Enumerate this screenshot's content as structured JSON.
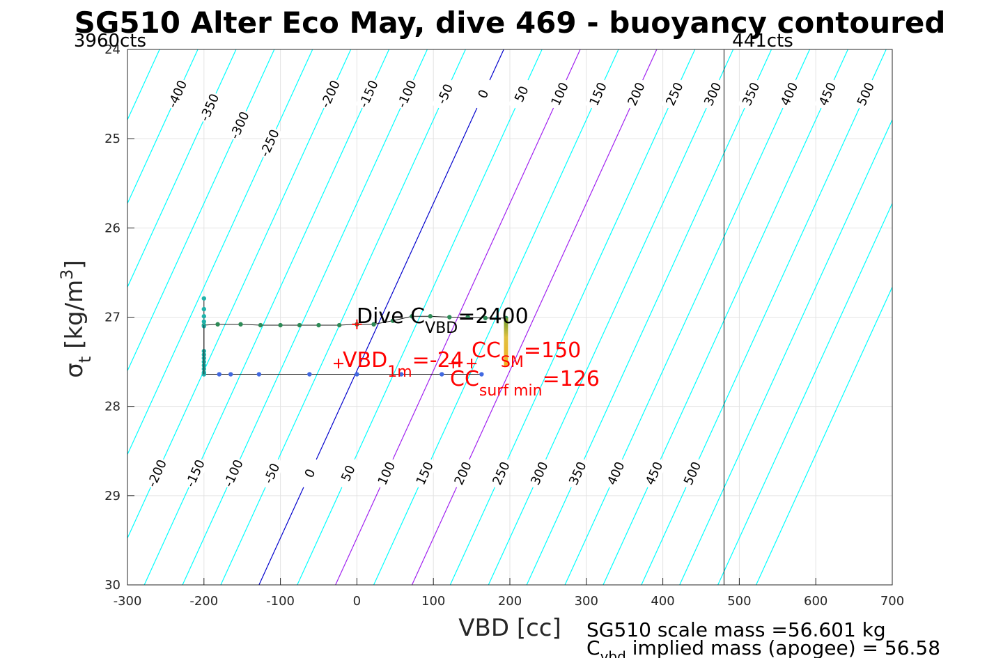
{
  "chart_data": {
    "type": "scatter",
    "title": "SG510 Alter Eco May, dive 469 - buoyancy contoured",
    "xlabel": "VBD [cc]",
    "ylabel": "σ_t [kg/m^3]",
    "xlim": [
      -300,
      700
    ],
    "ylim": [
      24,
      30
    ],
    "y_reversed": true,
    "grid": true,
    "xticks": [
      "-300",
      "-200",
      "-100",
      "0",
      "100",
      "200",
      "300",
      "400",
      "500",
      "600",
      "700"
    ],
    "yticks": [
      "24",
      "25",
      "26",
      "27",
      "28",
      "29",
      "30"
    ],
    "counts_left": "3960cts",
    "counts_right": "441cts",
    "vline_x": 480,
    "contour_levels": [
      -450,
      -400,
      -350,
      -300,
      -250,
      -200,
      -150,
      -100,
      -50,
      0,
      50,
      100,
      150,
      200,
      250,
      300,
      350,
      400,
      450,
      500,
      550,
      600,
      650
    ],
    "contour_slope_sigma_per_cc": -0.01875,
    "contour_ref_sigma": 27.6,
    "contour_colors": {
      "default": "#00ffff",
      "zero": "#0000cd",
      "highlight": "#a020f0"
    },
    "highlight_levels": [
      100,
      200
    ],
    "contour_labels_top": [
      "-400",
      "-350",
      "-300",
      "-250",
      "-200",
      "-150",
      "-100",
      "-50",
      "0",
      "50",
      "100",
      "150",
      "200",
      "250",
      "300",
      "350",
      "400",
      "450",
      "500"
    ],
    "contour_labels_bottom": [
      "-200",
      "-150",
      "-100",
      "-50",
      "0",
      "50",
      "100",
      "150",
      "200",
      "250",
      "300",
      "350",
      "400",
      "450",
      "500"
    ],
    "series": [
      {
        "color": "#2e8b57",
        "x": [
          -200,
          -182,
          -152,
          -126,
          -100,
          -75,
          -50,
          -23,
          0,
          22,
          47,
          72,
          96,
          121,
          145,
          168,
          195
        ],
        "y": [
          27.09,
          27.08,
          27.08,
          27.09,
          27.09,
          27.09,
          27.09,
          27.09,
          27.08,
          27.08,
          27.04,
          26.99,
          26.99,
          27.0,
          27.0,
          27.01,
          27.01
        ]
      },
      {
        "color": "#4169e1",
        "x": [
          -200,
          -180,
          -165,
          -128,
          -62,
          0,
          58,
          111,
          163
        ],
        "y": [
          27.64,
          27.64,
          27.64,
          27.64,
          27.64,
          27.64,
          27.64,
          27.64,
          27.64
        ]
      },
      {
        "color": "#20b2aa",
        "x": [
          -200,
          -200,
          -200,
          -200,
          -200,
          -200,
          -200,
          -200,
          -200,
          -200,
          -200,
          -200,
          -200
        ],
        "y": [
          26.79,
          26.91,
          26.99,
          27.05,
          27.1,
          27.38,
          27.42,
          27.46,
          27.5,
          27.54,
          27.58,
          27.62,
          27.64
        ]
      }
    ],
    "cc_sm_bar": {
      "x": 195,
      "y_top": 27.01,
      "y_bottom": 27.55
    },
    "red_markers": [
      {
        "x": 0,
        "y": 27.08
      },
      {
        "x": -24,
        "y": 27.52
      },
      {
        "x": 126,
        "y": 27.52
      },
      {
        "x": 150,
        "y": 27.52
      }
    ],
    "annotations": {
      "dive_c_vbd": {
        "main": "Dive C",
        "sub": "VBD",
        "value": "=2400"
      },
      "vbd_1m": {
        "main": "VBD",
        "sub": "1m",
        "value": "=-24"
      },
      "cc_sm": {
        "main": "CC",
        "sub": "SM",
        "value": "=150"
      },
      "cc_surf_min": {
        "main": "CC",
        "sub": "surf min",
        "value": "=126"
      }
    },
    "footer": {
      "line1": "SG510 scale mass =56.601 kg",
      "line2_main": "C",
      "line2_sub": "vbd",
      "line2_rest": " implied mass (apogee) = 56.58"
    }
  }
}
